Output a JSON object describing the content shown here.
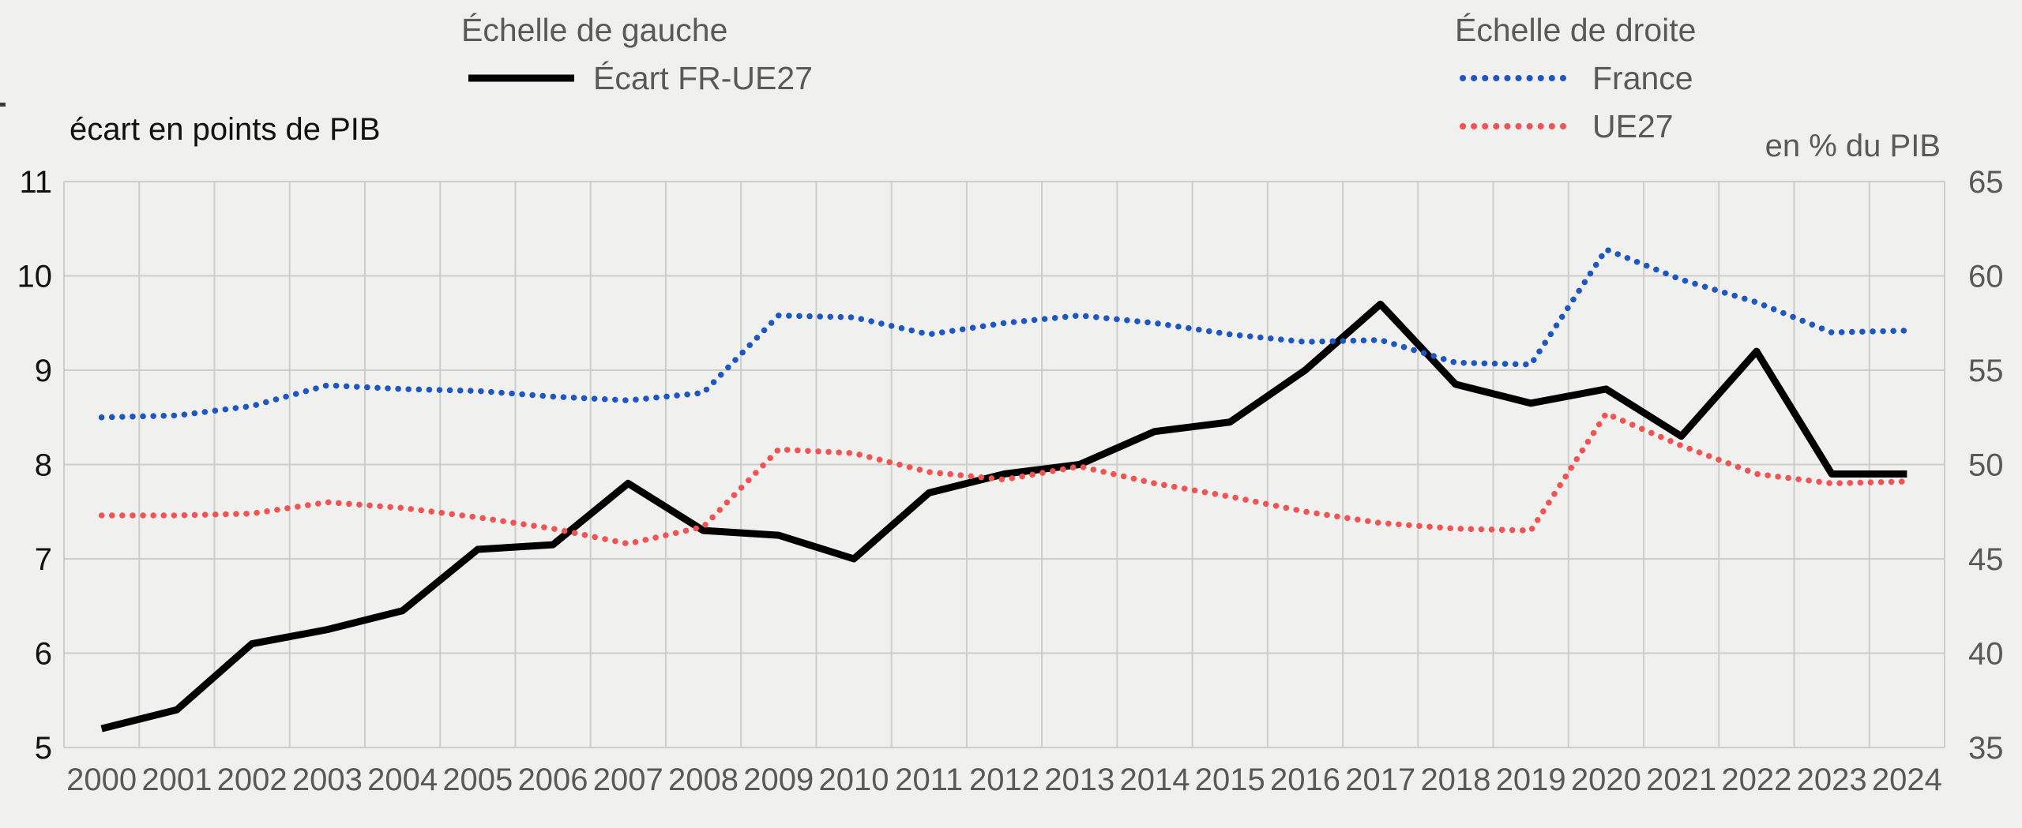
{
  "legend": {
    "left_title": "Échelle de gauche",
    "ecart_label": "Écart FR-UE27",
    "right_title": "Échelle de droite",
    "france_label": "France",
    "ue27_label": "UE27"
  },
  "axes": {
    "left_title": "écart en points de PIB",
    "right_title": "en % du PIB"
  },
  "colors": {
    "ecart": "#000000",
    "france": "#1f57c0",
    "ue27": "#f05353",
    "background": "#f0f0ee",
    "grid": "#cdcdcb",
    "text_gray": "#595959",
    "text_black": "#111111"
  },
  "chart_data": {
    "type": "line",
    "title": "",
    "x": [
      2000,
      2001,
      2002,
      2003,
      2004,
      2005,
      2006,
      2007,
      2008,
      2009,
      2010,
      2011,
      2012,
      2013,
      2014,
      2015,
      2016,
      2017,
      2018,
      2019,
      2020,
      2021,
      2022,
      2023,
      2024
    ],
    "series": [
      {
        "name": "Écart FR-UE27",
        "axis": "left",
        "style": "solid",
        "color_key": "ecart",
        "values": [
          5.2,
          5.4,
          6.1,
          6.25,
          6.45,
          7.1,
          7.15,
          7.8,
          7.3,
          7.25,
          7.0,
          7.7,
          7.9,
          8.0,
          8.35,
          8.45,
          9.0,
          9.7,
          8.85,
          8.65,
          8.8,
          8.3,
          9.2,
          7.9,
          7.9
        ]
      },
      {
        "name": "France",
        "axis": "right",
        "style": "dotted",
        "color_key": "france",
        "values": [
          52.5,
          52.6,
          53.1,
          54.2,
          54.0,
          53.9,
          53.6,
          53.4,
          53.8,
          57.9,
          57.8,
          56.9,
          57.5,
          57.9,
          57.5,
          56.9,
          56.5,
          56.6,
          55.4,
          55.3,
          61.4,
          59.8,
          58.6,
          57.0,
          57.1
        ]
      },
      {
        "name": "UE27",
        "axis": "right",
        "style": "dotted",
        "color_key": "ue27",
        "values": [
          47.3,
          47.3,
          47.4,
          48.0,
          47.7,
          47.2,
          46.6,
          45.8,
          46.7,
          50.8,
          50.6,
          49.6,
          49.2,
          49.9,
          49.0,
          48.3,
          47.5,
          46.9,
          46.6,
          46.5,
          52.7,
          51.0,
          49.5,
          49.0,
          49.1
        ]
      }
    ],
    "left_axis": {
      "min": 5,
      "max": 11,
      "ticks": [
        11,
        10,
        9,
        8,
        7,
        6,
        5
      ],
      "label": "écart en points de PIB"
    },
    "right_axis": {
      "min": 35,
      "max": 65,
      "ticks": [
        65,
        60,
        55,
        50,
        45,
        40,
        35
      ],
      "label": "en % du PIB"
    },
    "grid": true,
    "legend_position": "top"
  }
}
